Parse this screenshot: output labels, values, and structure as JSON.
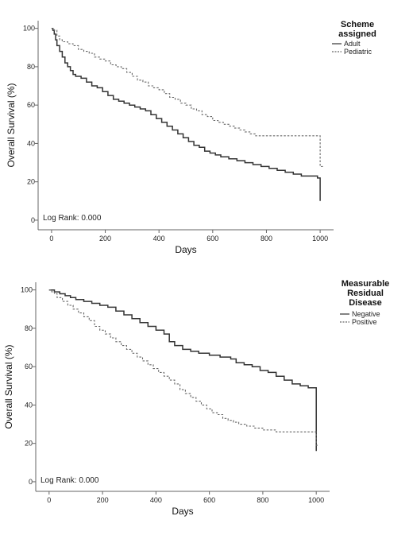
{
  "chart_data": [
    {
      "type": "line",
      "title": "",
      "xlabel": "Days",
      "ylabel": "Overall Survival (%)",
      "xlim": [
        -50,
        1050
      ],
      "ylim": [
        -5,
        104
      ],
      "xticks": [
        0,
        200,
        400,
        600,
        800,
        1000
      ],
      "yticks": [
        0,
        20,
        40,
        60,
        80,
        100
      ],
      "legend": {
        "title": "Scheme assigned",
        "title_lines": [
          "Scheme",
          "assigned"
        ],
        "position": "top-right"
      },
      "annotation": "Log Rank: 0.000",
      "series": [
        {
          "name": "Adult",
          "style": "solid",
          "points": [
            [
              0,
              100
            ],
            [
              5,
              99
            ],
            [
              10,
              97
            ],
            [
              15,
              94
            ],
            [
              20,
              91
            ],
            [
              30,
              88
            ],
            [
              40,
              85
            ],
            [
              50,
              82
            ],
            [
              60,
              80
            ],
            [
              70,
              78
            ],
            [
              80,
              76
            ],
            [
              90,
              75
            ],
            [
              110,
              74
            ],
            [
              130,
              72
            ],
            [
              150,
              70
            ],
            [
              170,
              69
            ],
            [
              190,
              67
            ],
            [
              210,
              65
            ],
            [
              230,
              63
            ],
            [
              250,
              62
            ],
            [
              270,
              61
            ],
            [
              290,
              60
            ],
            [
              310,
              59
            ],
            [
              330,
              58
            ],
            [
              350,
              57
            ],
            [
              370,
              55
            ],
            [
              390,
              53
            ],
            [
              410,
              51
            ],
            [
              430,
              49
            ],
            [
              450,
              47
            ],
            [
              470,
              45
            ],
            [
              490,
              43
            ],
            [
              510,
              41
            ],
            [
              530,
              39
            ],
            [
              550,
              38
            ],
            [
              570,
              36
            ],
            [
              590,
              35
            ],
            [
              610,
              34
            ],
            [
              630,
              33
            ],
            [
              660,
              32
            ],
            [
              690,
              31
            ],
            [
              720,
              30
            ],
            [
              750,
              29
            ],
            [
              780,
              28
            ],
            [
              810,
              27
            ],
            [
              840,
              26
            ],
            [
              870,
              25
            ],
            [
              900,
              24
            ],
            [
              930,
              23
            ],
            [
              960,
              23
            ],
            [
              990,
              22
            ],
            [
              1000,
              22
            ],
            [
              1000,
              10
            ]
          ]
        },
        {
          "name": "Pediatric",
          "style": "dashed",
          "points": [
            [
              0,
              100
            ],
            [
              10,
              99
            ],
            [
              20,
              96
            ],
            [
              30,
              94
            ],
            [
              40,
              93
            ],
            [
              60,
              92
            ],
            [
              80,
              91
            ],
            [
              100,
              89
            ],
            [
              120,
              88
            ],
            [
              140,
              87
            ],
            [
              160,
              85
            ],
            [
              180,
              84
            ],
            [
              200,
              83
            ],
            [
              220,
              81
            ],
            [
              240,
              80
            ],
            [
              260,
              79
            ],
            [
              280,
              77
            ],
            [
              300,
              75
            ],
            [
              320,
              73
            ],
            [
              340,
              72
            ],
            [
              360,
              70
            ],
            [
              380,
              69
            ],
            [
              400,
              68
            ],
            [
              420,
              66
            ],
            [
              440,
              64
            ],
            [
              460,
              63
            ],
            [
              480,
              61
            ],
            [
              500,
              60
            ],
            [
              520,
              58
            ],
            [
              540,
              57
            ],
            [
              560,
              55
            ],
            [
              580,
              54
            ],
            [
              600,
              52
            ],
            [
              620,
              51
            ],
            [
              640,
              50
            ],
            [
              660,
              49
            ],
            [
              680,
              48
            ],
            [
              700,
              47
            ],
            [
              720,
              46
            ],
            [
              740,
              45
            ],
            [
              760,
              44
            ],
            [
              1000,
              44
            ],
            [
              1000,
              28
            ],
            [
              1010,
              28
            ]
          ]
        }
      ]
    },
    {
      "type": "line",
      "title": "",
      "xlabel": "Days",
      "ylabel": "Overall Survival (%)",
      "xlim": [
        -50,
        1050
      ],
      "ylim": [
        -5,
        104
      ],
      "xticks": [
        0,
        200,
        400,
        600,
        800,
        1000
      ],
      "yticks": [
        0,
        20,
        40,
        60,
        80,
        100
      ],
      "legend": {
        "title": "Measurable Residual Disease",
        "title_lines": [
          "Measurable",
          "Residual",
          "Disease"
        ],
        "position": "top-right"
      },
      "annotation": "Log Rank: 0.000",
      "series": [
        {
          "name": "Negative",
          "style": "solid",
          "points": [
            [
              0,
              100
            ],
            [
              10,
              100
            ],
            [
              20,
              99
            ],
            [
              40,
              98
            ],
            [
              60,
              97
            ],
            [
              80,
              96
            ],
            [
              100,
              95
            ],
            [
              130,
              94
            ],
            [
              160,
              93
            ],
            [
              190,
              92
            ],
            [
              220,
              91
            ],
            [
              250,
              89
            ],
            [
              280,
              87
            ],
            [
              310,
              85
            ],
            [
              340,
              83
            ],
            [
              370,
              81
            ],
            [
              400,
              79
            ],
            [
              430,
              77
            ],
            [
              450,
              73
            ],
            [
              470,
              71
            ],
            [
              500,
              69
            ],
            [
              530,
              68
            ],
            [
              560,
              67
            ],
            [
              600,
              66
            ],
            [
              640,
              65
            ],
            [
              680,
              64
            ],
            [
              700,
              62
            ],
            [
              730,
              61
            ],
            [
              760,
              60
            ],
            [
              790,
              58
            ],
            [
              820,
              57
            ],
            [
              850,
              55
            ],
            [
              880,
              53
            ],
            [
              910,
              51
            ],
            [
              940,
              50
            ],
            [
              970,
              49
            ],
            [
              1000,
              48
            ],
            [
              1000,
              16
            ]
          ]
        },
        {
          "name": "Positive",
          "style": "dashed",
          "points": [
            [
              0,
              100
            ],
            [
              10,
              99
            ],
            [
              20,
              98
            ],
            [
              30,
              96
            ],
            [
              50,
              94
            ],
            [
              70,
              92
            ],
            [
              90,
              90
            ],
            [
              110,
              88
            ],
            [
              130,
              86
            ],
            [
              150,
              84
            ],
            [
              170,
              81
            ],
            [
              190,
              79
            ],
            [
              210,
              77
            ],
            [
              230,
              75
            ],
            [
              250,
              73
            ],
            [
              270,
              71
            ],
            [
              290,
              69
            ],
            [
              310,
              67
            ],
            [
              330,
              65
            ],
            [
              350,
              63
            ],
            [
              370,
              61
            ],
            [
              390,
              59
            ],
            [
              410,
              57
            ],
            [
              430,
              55
            ],
            [
              450,
              53
            ],
            [
              470,
              51
            ],
            [
              490,
              48
            ],
            [
              510,
              46
            ],
            [
              530,
              44
            ],
            [
              550,
              42
            ],
            [
              570,
              40
            ],
            [
              590,
              38
            ],
            [
              610,
              36
            ],
            [
              630,
              35
            ],
            [
              650,
              33
            ],
            [
              670,
              32
            ],
            [
              690,
              31
            ],
            [
              710,
              30
            ],
            [
              740,
              29
            ],
            [
              770,
              28
            ],
            [
              800,
              27
            ],
            [
              850,
              26
            ],
            [
              900,
              26
            ],
            [
              950,
              26
            ],
            [
              1000,
              26
            ],
            [
              1000,
              19
            ],
            [
              1010,
              19
            ]
          ]
        }
      ]
    }
  ]
}
